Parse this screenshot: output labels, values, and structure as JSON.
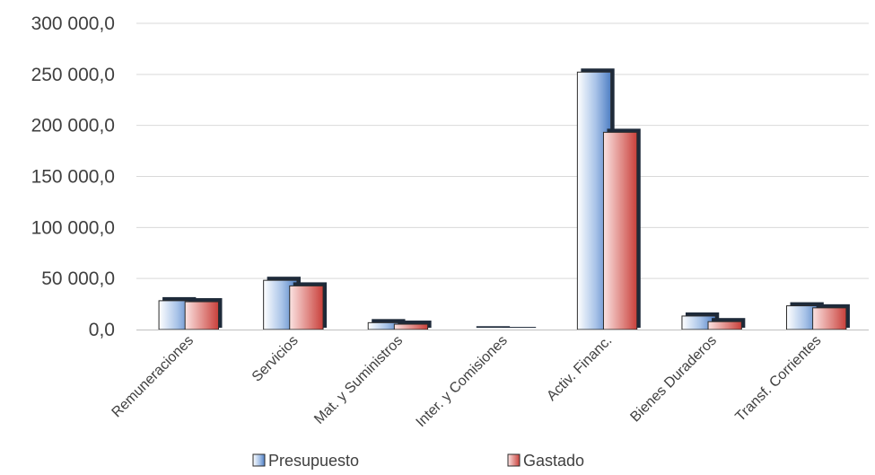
{
  "chart_data": {
    "type": "bar",
    "categories": [
      "Remuneraciones",
      "Servicios",
      "Mat. y Suministros",
      "Inter. y Comisiones",
      "Activ. Financ.",
      "Bienes Duraderos",
      "Transf. Corrientes"
    ],
    "series": [
      {
        "name": "Presupuesto",
        "values": [
          30000,
          50000,
          8500,
          1500,
          254000,
          15000,
          25000
        ],
        "color": "#5b8fd0"
      },
      {
        "name": "Gastado",
        "values": [
          29000,
          44500,
          7000,
          800,
          195000,
          9500,
          23000
        ],
        "color": "#d9534f"
      }
    ],
    "y_ticks": [
      "0,0",
      "50 000,0",
      "100 000,0",
      "150 000,0",
      "200 000,0",
      "250 000,0",
      "300 000,0"
    ],
    "ylim": [
      0,
      300000
    ],
    "grid": true,
    "legend_position": "bottom"
  }
}
